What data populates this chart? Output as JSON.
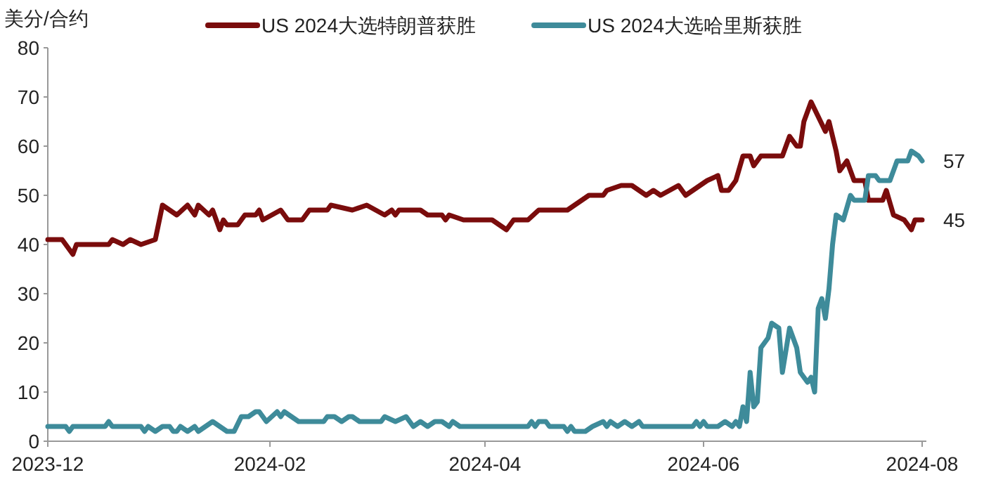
{
  "chart_data": {
    "type": "line",
    "ylabel": "美分/合约",
    "legend": "top",
    "grid": false,
    "marker": "none",
    "line_style": "solid",
    "ylim": [
      0,
      80
    ],
    "yticks": [
      0,
      10,
      20,
      30,
      40,
      50,
      60,
      70,
      80
    ],
    "xlim": [
      "2023-12-01",
      "2024-08-01"
    ],
    "xticks": [
      {
        "value": "2023-12-01",
        "label": "2023-12"
      },
      {
        "value": "2024-02-01",
        "label": "2024-02"
      },
      {
        "value": "2024-04-01",
        "label": "2024-04"
      },
      {
        "value": "2024-06-01",
        "label": "2024-06"
      },
      {
        "value": "2024-08-01",
        "label": "2024-08"
      }
    ],
    "annotations": [
      {
        "text": "57",
        "x": "2024-08-01",
        "y": 57
      },
      {
        "text": "45",
        "x": "2024-08-01",
        "y": 45
      }
    ],
    "series": [
      {
        "name": "US 2024大选特朗普获胜",
        "color": "#7a0c0c",
        "x": [
          "2023-12-01",
          "2023-12-05",
          "2023-12-08",
          "2023-12-09",
          "2023-12-18",
          "2023-12-19",
          "2023-12-22",
          "2023-12-24",
          "2023-12-27",
          "2023-12-31",
          "2024-01-02",
          "2024-01-04",
          "2024-01-06",
          "2024-01-09",
          "2024-01-11",
          "2024-01-12",
          "2024-01-15",
          "2024-01-16",
          "2024-01-18",
          "2024-01-19",
          "2024-01-20",
          "2024-01-23",
          "2024-01-25",
          "2024-01-28",
          "2024-01-29",
          "2024-01-30",
          "2024-02-04",
          "2024-02-06",
          "2024-02-10",
          "2024-02-12",
          "2024-02-17",
          "2024-02-18",
          "2024-02-24",
          "2024-02-28",
          "2024-03-04",
          "2024-03-06",
          "2024-03-07",
          "2024-03-08",
          "2024-03-14",
          "2024-03-16",
          "2024-03-20",
          "2024-03-21",
          "2024-03-22",
          "2024-03-26",
          "2024-03-31",
          "2024-04-03",
          "2024-04-05",
          "2024-04-07",
          "2024-04-09",
          "2024-04-13",
          "2024-04-16",
          "2024-04-24",
          "2024-04-26",
          "2024-04-28",
          "2024-04-30",
          "2024-05-04",
          "2024-05-05",
          "2024-05-09",
          "2024-05-12",
          "2024-05-16",
          "2024-05-18",
          "2024-05-20",
          "2024-05-25",
          "2024-05-27",
          "2024-05-29",
          "2024-06-02",
          "2024-06-05",
          "2024-06-06",
          "2024-06-08",
          "2024-06-10",
          "2024-06-12",
          "2024-06-14",
          "2024-06-15",
          "2024-06-17",
          "2024-06-23",
          "2024-06-25",
          "2024-06-27",
          "2024-06-28",
          "2024-06-29",
          "2024-07-01",
          "2024-07-05",
          "2024-07-06",
          "2024-07-08",
          "2024-07-09",
          "2024-07-11",
          "2024-07-13",
          "2024-07-16",
          "2024-07-17",
          "2024-07-21",
          "2024-07-22",
          "2024-07-24",
          "2024-07-27",
          "2024-07-29",
          "2024-07-30",
          "2024-08-01"
        ],
        "values": [
          41,
          41,
          38,
          40,
          40,
          41,
          40,
          41,
          40,
          41,
          48,
          47,
          46,
          48,
          46,
          48,
          46,
          47,
          43,
          45,
          44,
          44,
          46,
          46,
          47,
          45,
          47,
          45,
          45,
          47,
          47,
          48,
          47,
          48,
          46,
          47,
          46,
          47,
          47,
          46,
          46,
          45,
          46,
          45,
          45,
          45,
          44,
          43,
          45,
          45,
          47,
          47,
          48,
          49,
          50,
          50,
          51,
          52,
          52,
          50,
          51,
          50,
          52,
          50,
          51,
          53,
          54,
          51,
          51,
          53,
          58,
          58,
          56,
          58,
          58,
          62,
          60,
          60,
          65,
          69,
          63,
          65,
          59,
          55,
          57,
          53,
          53,
          49,
          49,
          51,
          46,
          45,
          43,
          45,
          45
        ]
      },
      {
        "name": "US 2024大选哈里斯获胜",
        "color": "#3e8b9a",
        "x": [
          "2023-12-01",
          "2023-12-06",
          "2023-12-07",
          "2023-12-08",
          "2023-12-17",
          "2023-12-18",
          "2023-12-19",
          "2023-12-27",
          "2023-12-28",
          "2023-12-29",
          "2023-12-31",
          "2024-01-02",
          "2024-01-04",
          "2024-01-05",
          "2024-01-06",
          "2024-01-07",
          "2024-01-09",
          "2024-01-11",
          "2024-01-12",
          "2024-01-16",
          "2024-01-18",
          "2024-01-20",
          "2024-01-22",
          "2024-01-24",
          "2024-01-26",
          "2024-01-28",
          "2024-01-29",
          "2024-01-31",
          "2024-02-03",
          "2024-02-04",
          "2024-02-05",
          "2024-02-07",
          "2024-02-09",
          "2024-02-16",
          "2024-02-17",
          "2024-02-19",
          "2024-02-21",
          "2024-02-23",
          "2024-02-24",
          "2024-02-26",
          "2024-03-03",
          "2024-03-04",
          "2024-03-07",
          "2024-03-10",
          "2024-03-12",
          "2024-03-14",
          "2024-03-16",
          "2024-03-18",
          "2024-03-20",
          "2024-03-22",
          "2024-03-23",
          "2024-03-25",
          "2024-04-01",
          "2024-04-03",
          "2024-04-13",
          "2024-04-14",
          "2024-04-15",
          "2024-04-16",
          "2024-04-18",
          "2024-04-19",
          "2024-04-23",
          "2024-04-24",
          "2024-04-25",
          "2024-04-26",
          "2024-04-29",
          "2024-05-01",
          "2024-05-04",
          "2024-05-05",
          "2024-05-06",
          "2024-05-08",
          "2024-05-10",
          "2024-05-12",
          "2024-05-14",
          "2024-05-15",
          "2024-05-29",
          "2024-05-30",
          "2024-05-31",
          "2024-06-01",
          "2024-06-02",
          "2024-06-05",
          "2024-06-07",
          "2024-06-09",
          "2024-06-10",
          "2024-06-11",
          "2024-06-12",
          "2024-06-13",
          "2024-06-14",
          "2024-06-15",
          "2024-06-16",
          "2024-06-17",
          "2024-06-19",
          "2024-06-20",
          "2024-06-22",
          "2024-06-23",
          "2024-06-25",
          "2024-06-27",
          "2024-06-28",
          "2024-06-30",
          "2024-07-01",
          "2024-07-02",
          "2024-07-03",
          "2024-07-04",
          "2024-07-05",
          "2024-07-06",
          "2024-07-07",
          "2024-07-08",
          "2024-07-10",
          "2024-07-12",
          "2024-07-13",
          "2024-07-16",
          "2024-07-17",
          "2024-07-19",
          "2024-07-20",
          "2024-07-23",
          "2024-07-25",
          "2024-07-28",
          "2024-07-29",
          "2024-07-31",
          "2024-08-01"
        ],
        "values": [
          3,
          3,
          2,
          3,
          3,
          4,
          3,
          3,
          2,
          3,
          2,
          3,
          3,
          2,
          2,
          3,
          2,
          3,
          2,
          4,
          3,
          2,
          2,
          5,
          5,
          6,
          6,
          4,
          6,
          5,
          6,
          5,
          4,
          4,
          5,
          5,
          4,
          5,
          5,
          4,
          4,
          5,
          4,
          5,
          3,
          4,
          3,
          4,
          4,
          3,
          4,
          3,
          3,
          3,
          3,
          4,
          3,
          4,
          4,
          3,
          3,
          2,
          3,
          2,
          2,
          3,
          4,
          3,
          4,
          3,
          4,
          3,
          4,
          3,
          3,
          4,
          3,
          4,
          3,
          3,
          4,
          3,
          4,
          3,
          7,
          4,
          14,
          7,
          8,
          19,
          21,
          24,
          23,
          14,
          23,
          19,
          14,
          12,
          13,
          10,
          27,
          29,
          25,
          31,
          40,
          46,
          45,
          50,
          49,
          49,
          54,
          54,
          53,
          53,
          57,
          57,
          59,
          58,
          57
        ]
      }
    ]
  }
}
